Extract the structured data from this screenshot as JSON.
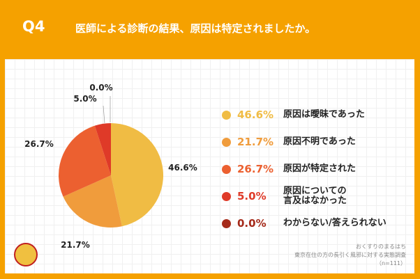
{
  "header": {
    "q": "Q4",
    "title": "医師による診断の結果、原因は特定されましたか。"
  },
  "chart_data": {
    "type": "pie",
    "title": "医師による診断の結果、原因は特定されましたか。",
    "slices": [
      {
        "label": "原因は曖昧であった",
        "value": 46.6,
        "display": "46.6%",
        "color": "#F0BC44"
      },
      {
        "label": "原因不明であった",
        "value": 21.7,
        "display": "21.7%",
        "color": "#F09C3C"
      },
      {
        "label": "原因が特定された",
        "value": 26.7,
        "display": "26.7%",
        "color": "#EC6030"
      },
      {
        "label": "原因についての言及はなかった",
        "value": 5.0,
        "display": "5.0%",
        "color": "#DF3A28"
      },
      {
        "label": "わからない/答えられない",
        "value": 0.0,
        "display": "0.0%",
        "color": "#A52A1A"
      }
    ],
    "legend": "right"
  },
  "footer": {
    "source": "おくすりのまるはち",
    "survey": "東京在住の方の長引く風邪に対する実態調査",
    "n": "（n=111）"
  }
}
